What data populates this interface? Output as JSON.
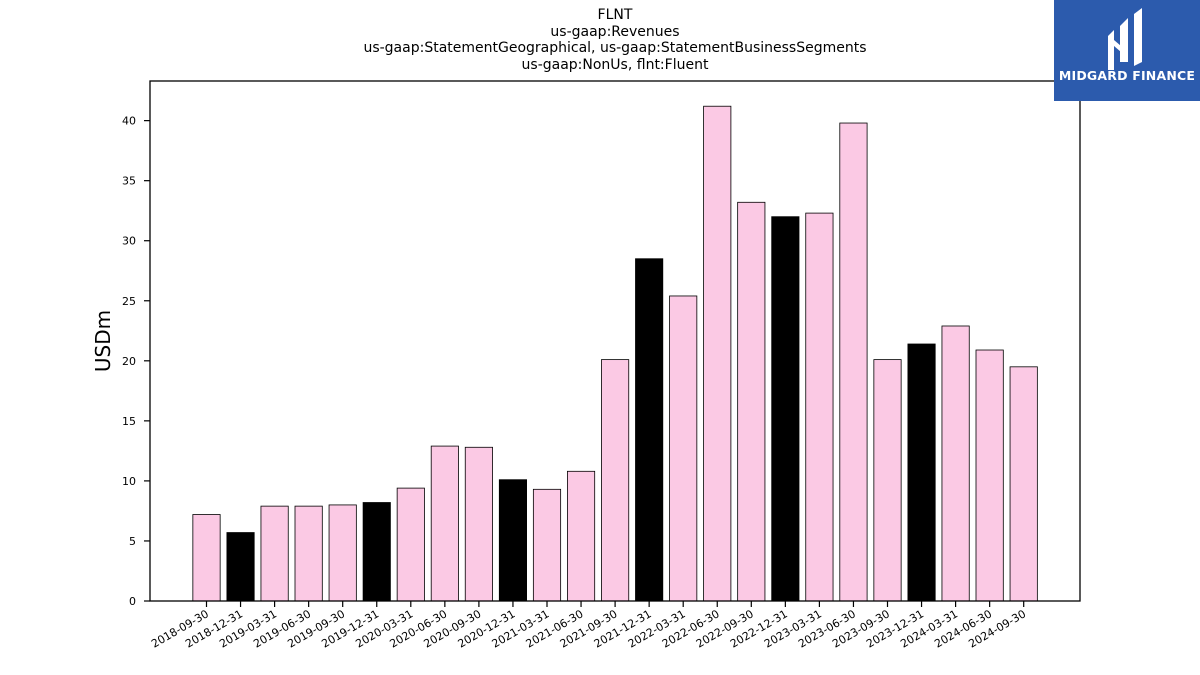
{
  "header": {
    "lines": [
      "FLNT",
      "us-gaap:Revenues",
      "us-gaap:StatementGeographical, us-gaap:StatementBusinessSegments",
      "us-gaap:NonUs, flnt:Fluent"
    ]
  },
  "logo": {
    "text": "MIDGARD FINANCE",
    "icon": "midgard-m-logo-icon",
    "background": "#2c5bad"
  },
  "chart_data": {
    "type": "bar",
    "title": "FLNT\nus-gaap:Revenues\nus-gaap:StatementGeographical, us-gaap:StatementBusinessSegments\nus-gaap:NonUs, flnt:Fluent",
    "xlabel": "",
    "ylabel": "USDm",
    "ylim": [
      0,
      43.3
    ],
    "yticks": [
      0,
      5,
      10,
      15,
      20,
      25,
      30,
      35,
      40
    ],
    "grid": false,
    "colors": {
      "quarter": "#fbc9e4",
      "year_end": "#000000",
      "edge": "#000000"
    },
    "categories": [
      "2018-09-30",
      "2018-12-31",
      "2019-03-31",
      "2019-06-30",
      "2019-09-30",
      "2019-12-31",
      "2020-03-31",
      "2020-06-30",
      "2020-09-30",
      "2020-12-31",
      "2021-03-31",
      "2021-06-30",
      "2021-09-30",
      "2021-12-31",
      "2022-03-31",
      "2022-06-30",
      "2022-09-30",
      "2022-12-31",
      "2023-03-31",
      "2023-06-30",
      "2023-09-30",
      "2023-12-31",
      "2024-03-31",
      "2024-06-30",
      "2024-09-30"
    ],
    "values": [
      7.2,
      5.7,
      7.9,
      7.9,
      8.0,
      8.2,
      9.4,
      12.9,
      12.8,
      10.1,
      9.3,
      10.8,
      20.1,
      28.5,
      25.4,
      41.2,
      33.2,
      32.0,
      32.3,
      39.8,
      20.1,
      21.4,
      22.9,
      20.9,
      19.5
    ],
    "highlight": [
      false,
      true,
      false,
      false,
      false,
      true,
      false,
      false,
      false,
      true,
      false,
      false,
      false,
      true,
      false,
      false,
      false,
      true,
      false,
      false,
      false,
      true,
      false,
      false,
      false
    ]
  }
}
